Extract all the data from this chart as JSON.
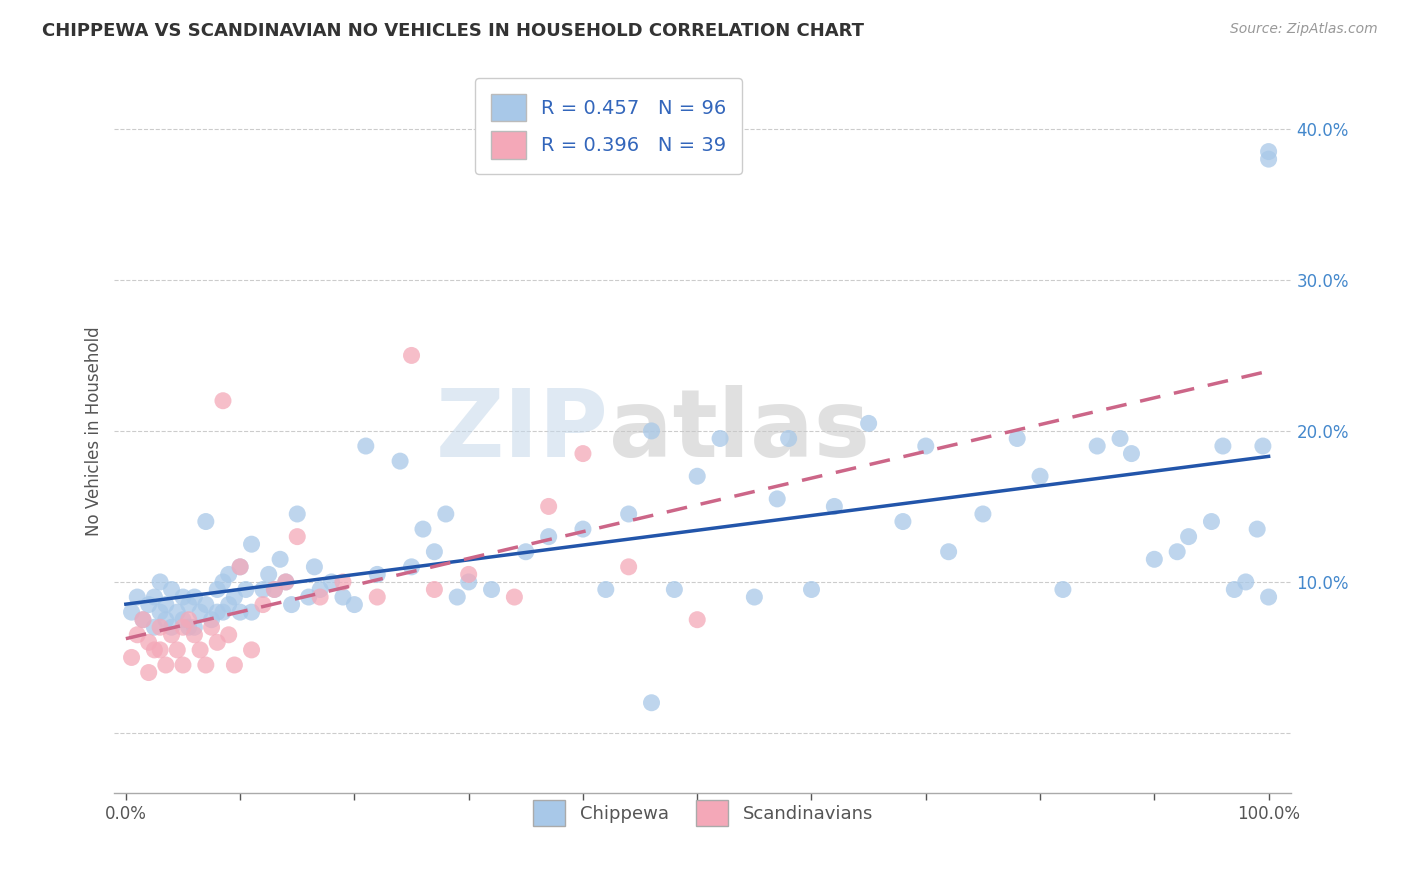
{
  "title": "CHIPPEWA VS SCANDINAVIAN NO VEHICLES IN HOUSEHOLD CORRELATION CHART",
  "source": "Source: ZipAtlas.com",
  "ylabel": "No Vehicles in Household",
  "chippewa_color": "#a8c8e8",
  "scandinavian_color": "#f4a8b8",
  "chippewa_line_color": "#2255aa",
  "scandinavian_line_color": "#cc6688",
  "watermark_zip": "ZIP",
  "watermark_atlas": "atlas",
  "legend_labels": [
    "Chippewa",
    "Scandinavians"
  ],
  "chippewa_R": 0.457,
  "chippewa_N": 96,
  "scandinavian_R": 0.396,
  "scandinavian_N": 39,
  "chippewa_x": [
    0.5,
    1.0,
    1.5,
    2.0,
    2.5,
    2.5,
    3.0,
    3.0,
    3.5,
    3.5,
    4.0,
    4.0,
    4.5,
    5.0,
    5.0,
    5.5,
    5.5,
    6.0,
    6.0,
    6.5,
    7.0,
    7.0,
    7.5,
    8.0,
    8.0,
    8.5,
    8.5,
    9.0,
    9.0,
    9.5,
    10.0,
    10.0,
    10.5,
    11.0,
    11.0,
    12.0,
    12.5,
    13.0,
    13.5,
    14.0,
    14.5,
    15.0,
    16.0,
    16.5,
    17.0,
    18.0,
    19.0,
    20.0,
    21.0,
    22.0,
    24.0,
    25.0,
    26.0,
    27.0,
    28.0,
    29.0,
    30.0,
    32.0,
    35.0,
    37.0,
    40.0,
    42.0,
    44.0,
    46.0,
    48.0,
    50.0,
    52.0,
    55.0,
    57.0,
    58.0,
    60.0,
    62.0,
    65.0,
    68.0,
    70.0,
    72.0,
    75.0,
    78.0,
    80.0,
    82.0,
    85.0,
    87.0,
    88.0,
    90.0,
    92.0,
    93.0,
    95.0,
    96.0,
    97.0,
    98.0,
    99.0,
    99.5,
    100.0,
    46.0,
    100.0,
    100.0
  ],
  "chippewa_y": [
    8.0,
    9.0,
    7.5,
    8.5,
    7.0,
    9.0,
    8.0,
    10.0,
    7.5,
    8.5,
    7.0,
    9.5,
    8.0,
    7.5,
    9.0,
    7.0,
    8.5,
    7.0,
    9.0,
    8.0,
    8.5,
    14.0,
    7.5,
    8.0,
    9.5,
    8.0,
    10.0,
    8.5,
    10.5,
    9.0,
    8.0,
    11.0,
    9.5,
    8.0,
    12.5,
    9.5,
    10.5,
    9.5,
    11.5,
    10.0,
    8.5,
    14.5,
    9.0,
    11.0,
    9.5,
    10.0,
    9.0,
    8.5,
    19.0,
    10.5,
    18.0,
    11.0,
    13.5,
    12.0,
    14.5,
    9.0,
    10.0,
    9.5,
    12.0,
    13.0,
    13.5,
    9.5,
    14.5,
    20.0,
    9.5,
    17.0,
    19.5,
    9.0,
    15.5,
    19.5,
    9.5,
    15.0,
    20.5,
    14.0,
    19.0,
    12.0,
    14.5,
    19.5,
    17.0,
    9.5,
    19.0,
    19.5,
    18.5,
    11.5,
    12.0,
    13.0,
    14.0,
    19.0,
    9.5,
    10.0,
    13.5,
    19.0,
    38.0,
    2.0,
    38.5,
    9.0
  ],
  "scandinavian_x": [
    0.5,
    1.0,
    1.5,
    2.0,
    2.0,
    2.5,
    3.0,
    3.0,
    3.5,
    4.0,
    4.5,
    5.0,
    5.0,
    5.5,
    6.0,
    6.5,
    7.0,
    7.5,
    8.0,
    8.5,
    9.0,
    9.5,
    10.0,
    11.0,
    12.0,
    13.0,
    14.0,
    15.0,
    17.0,
    19.0,
    22.0,
    25.0,
    27.0,
    30.0,
    34.0,
    37.0,
    40.0,
    44.0,
    50.0
  ],
  "scandinavian_y": [
    5.0,
    6.5,
    7.5,
    4.0,
    6.0,
    5.5,
    5.5,
    7.0,
    4.5,
    6.5,
    5.5,
    4.5,
    7.0,
    7.5,
    6.5,
    5.5,
    4.5,
    7.0,
    6.0,
    22.0,
    6.5,
    4.5,
    11.0,
    5.5,
    8.5,
    9.5,
    10.0,
    13.0,
    9.0,
    10.0,
    9.0,
    25.0,
    9.5,
    10.5,
    9.0,
    15.0,
    18.5,
    11.0,
    7.5
  ]
}
